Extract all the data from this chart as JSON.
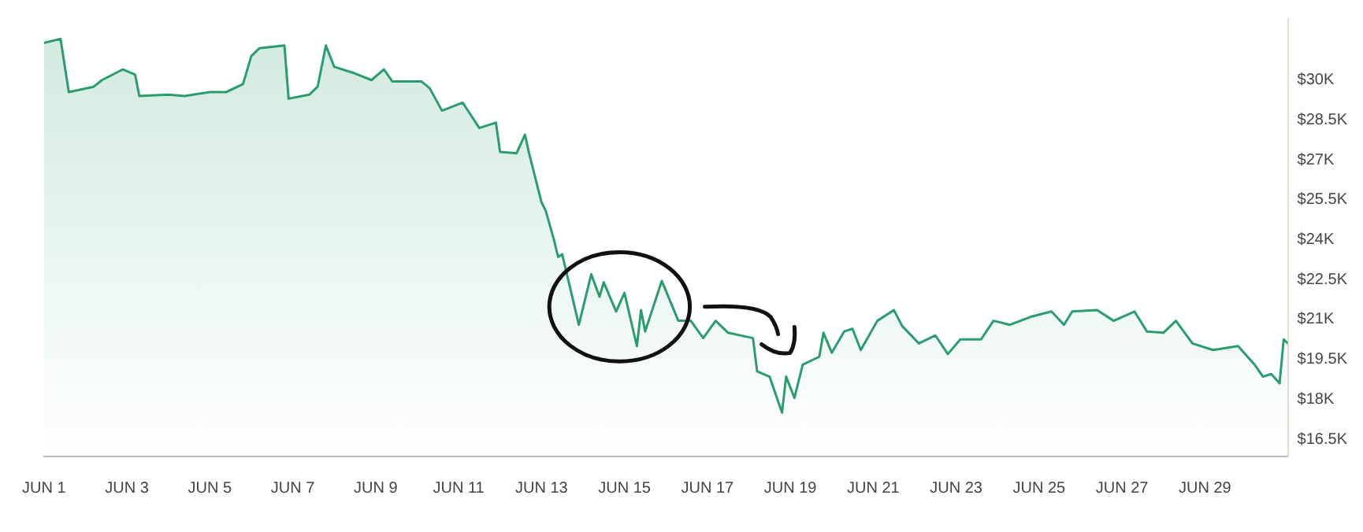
{
  "chart_data": {
    "type": "area",
    "color": "#2a9d6f",
    "marker": "none",
    "x": [
      "--06-01T00:00",
      "--06-01T09:36",
      "--06-01T12:00",
      "--06-01T14:24",
      "--06-02T04:48",
      "--06-02T09:36",
      "--06-02T21:36",
      "--06-03T04:48",
      "--06-03T07:12",
      "--06-04T00:00",
      "--06-04T09:36",
      "--06-05T00:00",
      "--06-05T09:36",
      "--06-05T19:12",
      "--06-06T00:00",
      "--06-06T04:48",
      "--06-06T19:12",
      "--06-06T21:36",
      "--06-07T09:36",
      "--06-07T14:24",
      "--06-07T19:12",
      "--06-08T00:00",
      "--06-08T12:00",
      "--06-08T21:36",
      "--06-09T04:48",
      "--06-09T09:36",
      "--06-10T02:24",
      "--06-10T07:12",
      "--06-10T14:24",
      "--06-11T02:24",
      "--06-11T12:00",
      "--06-11T21:36",
      "--06-12T00:00",
      "--06-12T09:36",
      "--06-12T14:24",
      "--06-12T16:48",
      "--06-13T00:00",
      "--06-13T02:24",
      "--06-13T07:12",
      "--06-13T09:36",
      "--06-13T12:00",
      "--06-13T21:36",
      "--06-14T04:48",
      "--06-14T09:36",
      "--06-14T12:00",
      "--06-14T19:12",
      "--06-15T00:00",
      "--06-15T07:12",
      "--06-15T09:36",
      "--06-15T12:00",
      "--06-15T21:36",
      "--06-16T07:12",
      "--06-16T14:24",
      "--06-16T21:36",
      "--06-17T04:48",
      "--06-17T12:00",
      "--06-18T02:24",
      "--06-18T04:48",
      "--06-18T12:00",
      "--06-18T19:12",
      "--06-18T21:36",
      "--06-19T02:24",
      "--06-19T07:12",
      "--06-19T16:48",
      "--06-19T19:12",
      "--06-20T00:00",
      "--06-20T07:12",
      "--06-20T12:00",
      "--06-20T16:48",
      "--06-21T02:24",
      "--06-21T12:00",
      "--06-21T16:48",
      "--06-22T02:24",
      "--06-22T12:00",
      "--06-22T19:12",
      "--06-23T02:24",
      "--06-23T14:24",
      "--06-23T21:36",
      "--06-24T07:12",
      "--06-24T19:12",
      "--06-25T07:12",
      "--06-25T14:24",
      "--06-25T19:12",
      "--06-26T09:36",
      "--06-26T19:12",
      "--06-27T07:12",
      "--06-27T14:24",
      "--06-28T00:00",
      "--06-28T07:12",
      "--06-28T16:48",
      "--06-29T04:48",
      "--06-29T19:12",
      "--06-30T04:48",
      "--06-30T09:36",
      "--06-30T14:24",
      "--06-30T19:12",
      "--06-30T21:36",
      "--07-01T00:00"
    ],
    "values": [
      31400,
      31550,
      30550,
      29550,
      29750,
      30000,
      30400,
      30200,
      29400,
      29450,
      29400,
      29550,
      29550,
      29850,
      30900,
      31200,
      31300,
      29300,
      29450,
      29750,
      31300,
      30500,
      30250,
      30000,
      30400,
      29950,
      29950,
      29700,
      28850,
      29150,
      28200,
      28400,
      27300,
      27250,
      27950,
      27250,
      25400,
      25100,
      24000,
      23350,
      23450,
      20800,
      22700,
      21850,
      22400,
      21300,
      22000,
      20000,
      21350,
      20550,
      22450,
      20950,
      20950,
      20300,
      20950,
      20500,
      20300,
      19050,
      18850,
      17500,
      18850,
      18050,
      19300,
      19600,
      20500,
      19750,
      20550,
      20650,
      19850,
      20950,
      21350,
      20750,
      20100,
      20400,
      19700,
      20250,
      20250,
      20950,
      20800,
      21100,
      21300,
      20800,
      21300,
      21350,
      20950,
      21300,
      20550,
      20500,
      20950,
      20100,
      19850,
      20000,
      19300,
      18850,
      18950,
      18600,
      20250,
      20100
    ],
    "xlim": [
      "--06-01",
      "--07-01"
    ],
    "xticks": [
      {
        "value": "--06-01",
        "label": "JUN 1"
      },
      {
        "value": "--06-03",
        "label": "JUN 3"
      },
      {
        "value": "--06-05",
        "label": "JUN 5"
      },
      {
        "value": "--06-07",
        "label": "JUN 7"
      },
      {
        "value": "--06-09",
        "label": "JUN 9"
      },
      {
        "value": "--06-11",
        "label": "JUN 11"
      },
      {
        "value": "--06-13",
        "label": "JUN 13"
      },
      {
        "value": "--06-15",
        "label": "JUN 15"
      },
      {
        "value": "--06-17",
        "label": "JUN 17"
      },
      {
        "value": "--06-19",
        "label": "JUN 19"
      },
      {
        "value": "--06-21",
        "label": "JUN 21"
      },
      {
        "value": "--06-23",
        "label": "JUN 23"
      },
      {
        "value": "--06-25",
        "label": "JUN 25"
      },
      {
        "value": "--06-27",
        "label": "JUN 27"
      },
      {
        "value": "--06-29",
        "label": "JUN 29"
      }
    ],
    "ylim": [
      15850,
      32300
    ],
    "yticks": [
      {
        "value": 16500,
        "label": "$16.5K"
      },
      {
        "value": 18000,
        "label": "$18K"
      },
      {
        "value": 19500,
        "label": "$19.5K"
      },
      {
        "value": 21000,
        "label": "$21K"
      },
      {
        "value": 22500,
        "label": "$22.5K"
      },
      {
        "value": 24000,
        "label": "$24K"
      },
      {
        "value": 25500,
        "label": "$25.5K"
      },
      {
        "value": 27000,
        "label": "$27K"
      },
      {
        "value": 28500,
        "label": "$28.5K"
      },
      {
        "value": 30000,
        "label": "$30K"
      }
    ]
  }
}
